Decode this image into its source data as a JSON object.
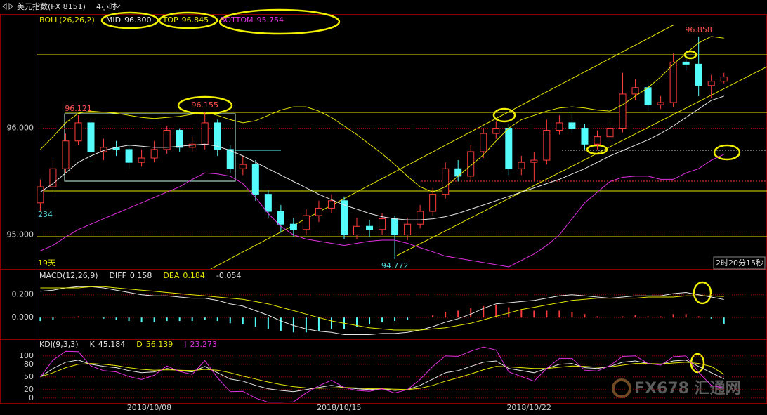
{
  "header": {
    "title": "美元指数(FX 8151)",
    "period": "4小时"
  },
  "watermark": "FX678 汇通网",
  "chart_data": [
    {
      "type": "candlestick",
      "indicator": "BOLL(26,26,2)",
      "xlim": [
        -0.3,
        57.4
      ],
      "ylim": [
        94.68,
        97.07
      ],
      "yticks": [
        {
          "value": 96,
          "label": "96.000"
        },
        {
          "value": 95,
          "label": "95.000"
        }
      ],
      "up_color": "#ff3c3c",
      "down_color": "#54fcfc",
      "open": [
        95.3,
        95.45,
        95.62,
        95.88,
        96.05,
        95.78,
        95.82,
        95.8,
        95.68,
        95.72,
        95.8,
        95.98,
        95.82,
        95.85,
        96.05,
        95.8,
        95.62,
        95.66,
        95.38,
        95.22,
        95.1,
        95.05,
        95.18,
        95.25,
        95.32,
        95.0,
        95.08,
        95.05,
        95.15,
        95.0,
        95.1,
        95.22,
        95.38,
        95.62,
        95.55,
        95.78,
        95.95,
        96.0,
        95.62,
        95.68,
        95.7,
        95.98,
        96.05,
        96.0,
        95.85,
        95.92,
        96.0,
        96.32,
        96.38,
        96.22,
        96.24,
        96.62,
        96.6,
        96.4,
        96.44
      ],
      "high": [
        95.52,
        95.7,
        95.95,
        96.121,
        96.08,
        95.9,
        95.88,
        95.84,
        95.8,
        95.88,
        96.02,
        96.0,
        95.92,
        96.155,
        96.08,
        95.84,
        95.74,
        95.7,
        95.42,
        95.28,
        95.16,
        95.24,
        95.32,
        95.38,
        95.36,
        95.16,
        95.14,
        95.2,
        95.18,
        95.16,
        95.28,
        95.44,
        95.68,
        95.7,
        95.84,
        96.0,
        96.06,
        96.04,
        95.74,
        95.78,
        96.08,
        96.12,
        96.14,
        96.04,
        95.98,
        96.06,
        96.52,
        96.46,
        96.42,
        96.3,
        96.7,
        96.72,
        96.858,
        96.5,
        96.52
      ],
      "low": [
        95.22,
        95.4,
        95.58,
        95.84,
        95.72,
        95.7,
        95.74,
        95.62,
        95.64,
        95.68,
        95.76,
        95.78,
        95.78,
        95.8,
        95.74,
        95.58,
        95.56,
        95.32,
        95.16,
        95.02,
        94.98,
        95.0,
        95.12,
        95.2,
        94.96,
        94.96,
        94.98,
        95.0,
        94.772,
        94.95,
        95.06,
        95.18,
        95.34,
        95.5,
        95.5,
        95.72,
        95.9,
        95.56,
        95.56,
        95.5,
        95.66,
        95.94,
        95.96,
        95.8,
        95.8,
        95.88,
        95.96,
        96.26,
        96.16,
        96.18,
        96.2,
        96.54,
        96.3,
        96.28,
        96.42
      ],
      "close": [
        95.45,
        95.62,
        95.88,
        96.05,
        95.78,
        95.82,
        95.8,
        95.68,
        95.72,
        95.8,
        95.98,
        95.82,
        95.85,
        96.05,
        95.8,
        95.62,
        95.66,
        95.38,
        95.22,
        95.1,
        95.05,
        95.18,
        95.25,
        95.32,
        95.0,
        95.08,
        95.05,
        95.15,
        95.0,
        95.1,
        95.22,
        95.38,
        95.62,
        95.55,
        95.78,
        95.95,
        96.0,
        95.62,
        95.68,
        95.7,
        95.98,
        96.05,
        96.0,
        95.85,
        95.92,
        96.0,
        96.32,
        96.38,
        96.22,
        96.24,
        96.62,
        96.6,
        96.4,
        96.44,
        96.48
      ],
      "series": [
        {
          "name": "MID",
          "color": "#e8e8e8",
          "readout": {
            "value": 96.3,
            "label": "96.300"
          },
          "values": [
            95.4,
            95.48,
            95.58,
            95.68,
            95.74,
            95.79,
            95.82,
            95.84,
            95.83,
            95.82,
            95.82,
            95.83,
            95.84,
            95.85,
            95.83,
            95.79,
            95.74,
            95.68,
            95.62,
            95.56,
            95.5,
            95.44,
            95.38,
            95.33,
            95.28,
            95.24,
            95.2,
            95.17,
            95.15,
            95.14,
            95.14,
            95.15,
            95.17,
            95.2,
            95.24,
            95.28,
            95.32,
            95.36,
            95.4,
            95.44,
            95.48,
            95.52,
            95.57,
            95.62,
            95.68,
            95.74,
            95.79,
            95.84,
            95.89,
            95.95,
            96.02,
            96.1,
            96.18,
            96.26,
            96.3
          ]
        },
        {
          "name": "TOP",
          "color": "#e6e600",
          "readout": 96.845,
          "values": [
            95.8,
            95.92,
            96.05,
            96.14,
            96.16,
            96.15,
            96.14,
            96.12,
            96.1,
            96.09,
            96.1,
            96.11,
            96.13,
            96.15,
            96.12,
            96.08,
            96.05,
            96.07,
            96.12,
            96.17,
            96.2,
            96.2,
            96.16,
            96.1,
            96.02,
            95.94,
            95.85,
            95.76,
            95.66,
            95.55,
            95.45,
            95.4,
            95.45,
            95.55,
            95.65,
            95.75,
            95.88,
            96.0,
            96.08,
            96.12,
            96.16,
            96.19,
            96.2,
            96.19,
            96.17,
            96.16,
            96.22,
            96.3,
            96.38,
            96.48,
            96.6,
            96.7,
            96.8,
            96.86,
            96.845
          ]
        },
        {
          "name": "BOTTOM",
          "color": "#e030e0",
          "readout": 95.754,
          "values": [
            94.85,
            94.9,
            94.98,
            95.05,
            95.1,
            95.15,
            95.2,
            95.25,
            95.3,
            95.35,
            95.4,
            95.45,
            95.52,
            95.58,
            95.57,
            95.55,
            95.48,
            95.35,
            95.2,
            95.08,
            95.0,
            94.96,
            94.94,
            94.92,
            94.9,
            94.92,
            94.94,
            94.95,
            94.95,
            94.92,
            94.88,
            94.84,
            94.8,
            94.78,
            94.76,
            94.74,
            94.72,
            94.7,
            94.76,
            94.82,
            94.9,
            95.0,
            95.15,
            95.3,
            95.4,
            95.5,
            95.54,
            95.55,
            95.55,
            95.52,
            95.52,
            95.58,
            95.62,
            95.7,
            95.754
          ]
        }
      ],
      "annotations": [
        {
          "index": 3,
          "value": 96.121,
          "label": "96.121",
          "side": "above",
          "color": "#ff5050"
        },
        {
          "index": 13,
          "value": 96.155,
          "label": "96.155",
          "side": "above",
          "color": "#ff5050"
        },
        {
          "index": 28,
          "value": 94.772,
          "label": "94.772",
          "side": "below",
          "color": "#54d0d0"
        },
        {
          "index": 52,
          "value": 96.858,
          "label": "96.858",
          "side": "above",
          "color": "#ff5050"
        }
      ],
      "left_note": "234",
      "bars_note": "19天",
      "countdown": "2时20分15秒"
    },
    {
      "type": "macd",
      "indicator": "MACD(12,26,9)",
      "xlim": [
        -0.3,
        57.4
      ],
      "ylim": [
        -0.19,
        0.42
      ],
      "yticks": [
        {
          "value": 0.2,
          "label": "0.200"
        },
        {
          "value": 0,
          "label": "0.000"
        }
      ],
      "series": [
        {
          "name": "DIFF",
          "color": "#e8e8e8",
          "readout": 0.158,
          "values": [
            0.23,
            0.24,
            0.26,
            0.27,
            0.27,
            0.26,
            0.24,
            0.22,
            0.2,
            0.19,
            0.19,
            0.18,
            0.17,
            0.17,
            0.15,
            0.12,
            0.1,
            0.06,
            0.02,
            -0.03,
            -0.07,
            -0.1,
            -0.12,
            -0.13,
            -0.15,
            -0.15,
            -0.15,
            -0.14,
            -0.14,
            -0.13,
            -0.11,
            -0.08,
            -0.04,
            -0.01,
            0.03,
            0.08,
            0.12,
            0.13,
            0.14,
            0.15,
            0.17,
            0.19,
            0.2,
            0.19,
            0.18,
            0.17,
            0.18,
            0.19,
            0.19,
            0.19,
            0.21,
            0.22,
            0.2,
            0.18,
            0.158
          ]
        },
        {
          "name": "DEA",
          "color": "#e6e600",
          "readout": 0.184,
          "values": [
            0.26,
            0.26,
            0.26,
            0.26,
            0.27,
            0.27,
            0.26,
            0.25,
            0.24,
            0.23,
            0.22,
            0.21,
            0.2,
            0.19,
            0.18,
            0.17,
            0.16,
            0.14,
            0.12,
            0.09,
            0.06,
            0.03,
            0.0,
            -0.03,
            -0.05,
            -0.07,
            -0.09,
            -0.1,
            -0.11,
            -0.11,
            -0.11,
            -0.1,
            -0.09,
            -0.07,
            -0.05,
            -0.02,
            0.01,
            0.04,
            0.07,
            0.09,
            0.11,
            0.13,
            0.15,
            0.16,
            0.17,
            0.17,
            0.17,
            0.17,
            0.18,
            0.18,
            0.18,
            0.19,
            0.19,
            0.19,
            0.184
          ]
        }
      ],
      "histogram": {
        "up_color": "#ff3c3c",
        "down_color": "#54fcfc",
        "readout": -0.054,
        "values": [
          -0.03,
          -0.02,
          0.0,
          0.01,
          0.0,
          -0.01,
          -0.02,
          -0.03,
          -0.04,
          -0.04,
          -0.03,
          -0.03,
          -0.03,
          -0.02,
          -0.03,
          -0.05,
          -0.06,
          -0.08,
          -0.1,
          -0.12,
          -0.13,
          -0.13,
          -0.12,
          -0.1,
          -0.1,
          -0.08,
          -0.06,
          -0.04,
          -0.03,
          -0.02,
          0.0,
          0.02,
          0.05,
          0.06,
          0.08,
          0.1,
          0.11,
          0.09,
          0.07,
          0.06,
          0.06,
          0.06,
          0.05,
          0.03,
          0.01,
          0.0,
          0.01,
          0.02,
          0.01,
          0.01,
          0.03,
          0.03,
          0.01,
          -0.01,
          -0.054
        ]
      }
    },
    {
      "type": "kdj",
      "indicator": "KDJ(9,3,3)",
      "xlim": [
        -0.3,
        57.4
      ],
      "ylim": [
        -12,
        138
      ],
      "yticks": [
        100,
        80,
        50,
        20,
        0
      ],
      "xticks": [
        {
          "value": 8.6,
          "label": "2018/10/08"
        },
        {
          "value": 23.6,
          "label": "2018/10/15"
        },
        {
          "value": 38.6,
          "label": "2018/10/22"
        }
      ],
      "series": [
        {
          "name": "K",
          "color": "#e8e8e8",
          "readout": 45.184,
          "values": [
            50,
            70,
            85,
            90,
            80,
            75,
            72,
            65,
            60,
            62,
            70,
            65,
            62,
            75,
            60,
            45,
            40,
            30,
            22,
            18,
            15,
            20,
            25,
            30,
            25,
            22,
            20,
            22,
            18,
            20,
            30,
            45,
            60,
            65,
            75,
            85,
            88,
            70,
            65,
            60,
            70,
            80,
            82,
            72,
            70,
            75,
            85,
            88,
            82,
            80,
            88,
            90,
            75,
            60,
            45.184
          ]
        },
        {
          "name": "D",
          "color": "#e6e600",
          "readout": 56.139,
          "values": [
            50,
            60,
            72,
            80,
            82,
            80,
            77,
            72,
            68,
            66,
            67,
            66,
            65,
            68,
            66,
            60,
            52,
            45,
            38,
            32,
            27,
            24,
            23,
            24,
            25,
            24,
            22,
            22,
            21,
            20,
            23,
            30,
            40,
            48,
            57,
            67,
            75,
            74,
            72,
            70,
            70,
            73,
            76,
            75,
            73,
            74,
            78,
            82,
            82,
            81,
            83,
            85,
            82,
            75,
            56.139
          ]
        },
        {
          "name": "J",
          "color": "#e030e0",
          "readout": 23.273,
          "values": [
            50,
            90,
            111,
            110,
            76,
            65,
            62,
            51,
            44,
            54,
            76,
            63,
            56,
            89,
            48,
            15,
            16,
            0,
            -10,
            -10,
            -9,
            12,
            29,
            42,
            25,
            18,
            16,
            22,
            12,
            20,
            44,
            75,
            100,
            99,
            111,
            121,
            114,
            62,
            51,
            40,
            70,
            94,
            94,
            66,
            64,
            77,
            99,
            100,
            82,
            78,
            98,
            100,
            61,
            30,
            23.273
          ]
        }
      ]
    }
  ]
}
